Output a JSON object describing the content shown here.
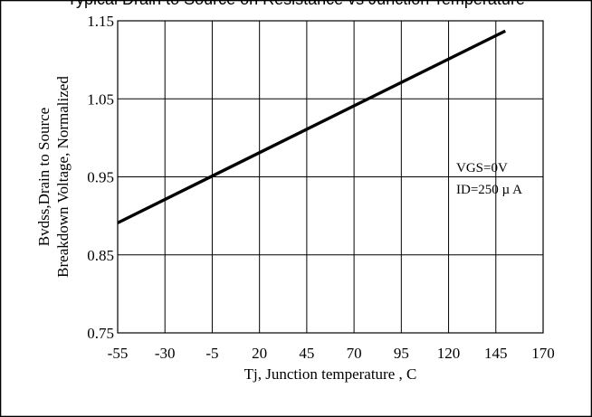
{
  "chart_data": {
    "type": "line",
    "title": "Typical Drain to Source on Resistance vs Junction Temperature",
    "xlabel": "Tj, Junction temperature , C",
    "ylabel": [
      "Bvdss,Drain to Source",
      "Breakdown Voltage, Normalized"
    ],
    "x_ticks": [
      "-55",
      "-30",
      "-5",
      "20",
      "45",
      "70",
      "95",
      "120",
      "145",
      "170"
    ],
    "y_ticks": [
      "0.75",
      "0.85",
      "0.95",
      "1.05",
      "1.15"
    ],
    "xlim": [
      -55,
      170
    ],
    "ylim": [
      0.75,
      1.15
    ],
    "grid": true,
    "annotations": [
      "VGS=0V",
      "ID=250 µ A"
    ],
    "series": [
      {
        "x": [
          -55,
          150
        ],
        "y": [
          0.891,
          1.137
        ]
      }
    ]
  }
}
